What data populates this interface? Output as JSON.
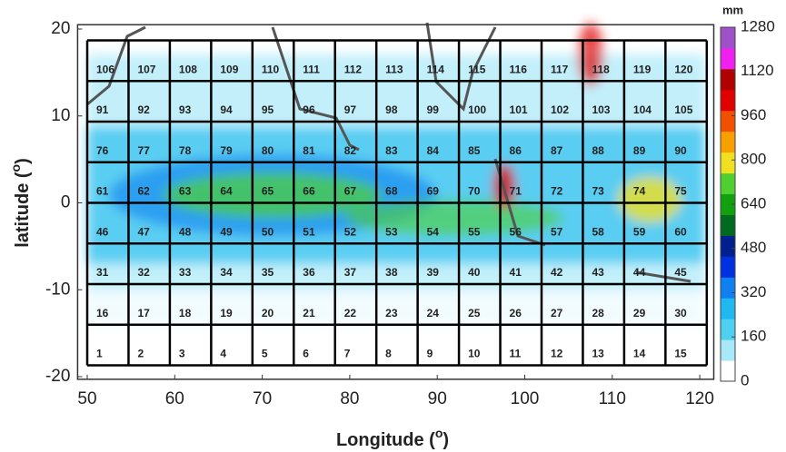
{
  "map": {
    "xlim": [
      48.9,
      121.6
    ],
    "ylim": [
      -20.3,
      20.5
    ],
    "xticks": [
      50,
      60,
      70,
      80,
      90,
      100,
      110,
      120
    ],
    "yticks": [
      -20,
      -10,
      0,
      10,
      20
    ],
    "x_label": {
      "text": "Longitude (",
      "sup": "o",
      "close": ")"
    },
    "y_label": {
      "text": "latitude (",
      "sup": "o",
      "close": ")"
    }
  },
  "grid": {
    "lon_edges": [
      50,
      54.72,
      59.44,
      64.16,
      68.88,
      73.6,
      78.32,
      83.04,
      87.76,
      92.48,
      97.2,
      101.92,
      106.64,
      111.36,
      116.08,
      120.8
    ],
    "lat_edges": [
      -18.7,
      -14.025,
      -9.35,
      -4.675,
      0,
      4.675,
      9.35,
      14.025,
      18.7
    ],
    "cell_labels": [
      1,
      2,
      3,
      4,
      5,
      6,
      7,
      8,
      9,
      10,
      11,
      12,
      13,
      14,
      15,
      16,
      17,
      18,
      19,
      20,
      21,
      22,
      23,
      24,
      25,
      26,
      27,
      28,
      29,
      30,
      31,
      32,
      33,
      34,
      35,
      36,
      37,
      38,
      39,
      40,
      41,
      42,
      43,
      44,
      45,
      46,
      47,
      48,
      49,
      50,
      51,
      52,
      53,
      54,
      55,
      56,
      57,
      58,
      59,
      60,
      61,
      62,
      63,
      64,
      65,
      66,
      67,
      68,
      69,
      70,
      71,
      72,
      73,
      74,
      75,
      76,
      77,
      78,
      79,
      80,
      81,
      82,
      83,
      84,
      85,
      86,
      87,
      88,
      89,
      90,
      91,
      92,
      93,
      94,
      95,
      96,
      97,
      98,
      99,
      100,
      101,
      102,
      103,
      104,
      105,
      106,
      107,
      108,
      109,
      110,
      111,
      112,
      113,
      114,
      115,
      116,
      117,
      118,
      119,
      120
    ]
  },
  "colorbar": {
    "unit": "mm",
    "clim": [
      0,
      1280
    ],
    "ticks": [
      0,
      160,
      320,
      480,
      640,
      800,
      960,
      1120,
      1280
    ],
    "colors": [
      "#ffffff",
      "#a8e8f8",
      "#50d0f0",
      "#20b8f0",
      "#1080f0",
      "#0030e0",
      "#002090",
      "#006a20",
      "#10a010",
      "#50d030",
      "#f0e020",
      "#f8a000",
      "#f05000",
      "#e00000",
      "#b00000",
      "#f020f0",
      "#a050c8"
    ]
  }
}
